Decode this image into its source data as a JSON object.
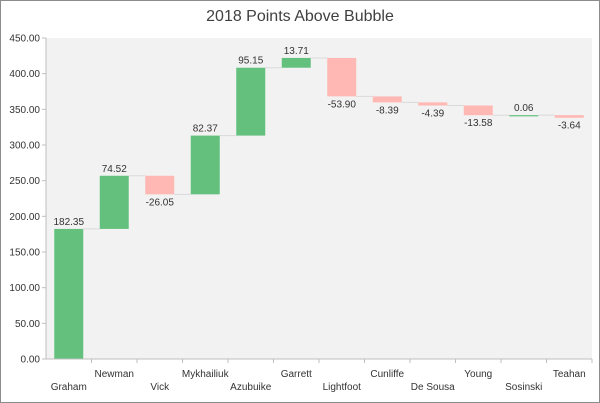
{
  "chart_data": {
    "type": "waterfall",
    "title": "2018 Points Above Bubble",
    "categories": [
      "Graham",
      "Newman",
      "Vick",
      "Mykhailiuk",
      "Azubuike",
      "Garrett",
      "Lightfoot",
      "Cunliffe",
      "De Sousa",
      "Young",
      "Sosinski",
      "Teahan"
    ],
    "values": [
      182.35,
      74.52,
      -26.05,
      82.37,
      95.15,
      13.71,
      -53.9,
      -8.39,
      -4.39,
      -13.58,
      0.06,
      -3.64
    ],
    "labels": [
      "182.35",
      "74.52",
      "-26.05",
      "82.37",
      "95.15",
      "13.71",
      "-53.90",
      "-8.39",
      "-4.39",
      "-13.58",
      "0.06",
      "-3.64"
    ],
    "y_ticks": [
      "0.00",
      "50.00",
      "100.00",
      "150.00",
      "200.00",
      "250.00",
      "300.00",
      "350.00",
      "400.00",
      "450.00"
    ],
    "ylim": [
      0,
      450
    ],
    "xlabel": "",
    "ylabel": "",
    "grid": false,
    "colors": {
      "positive": "#63c17d",
      "negative": "#ffb8b3",
      "plot_bg": "#f2f2f2",
      "connector": "#d9d9d9"
    }
  }
}
